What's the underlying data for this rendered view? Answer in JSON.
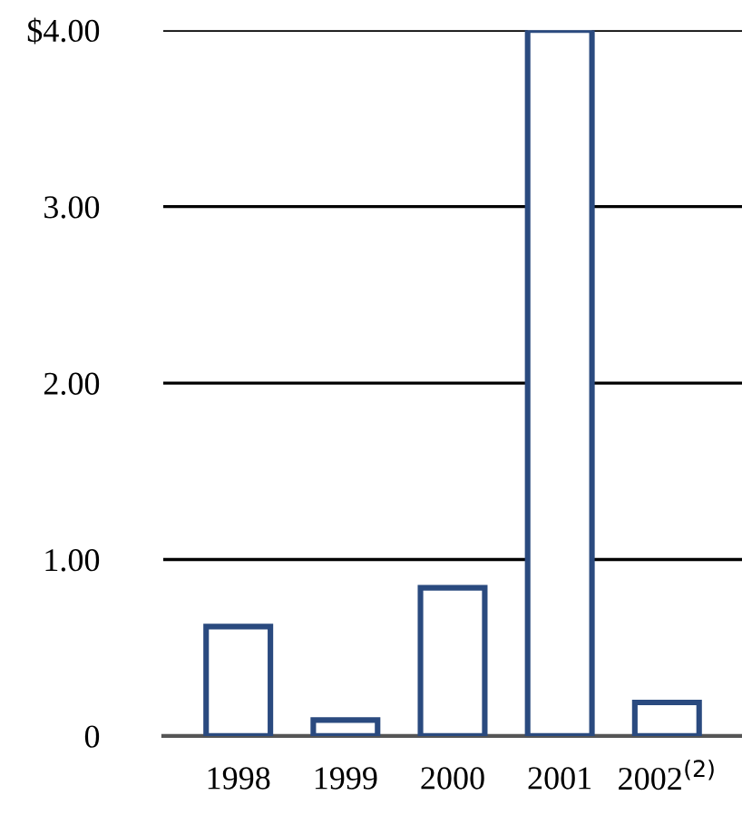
{
  "chart_data": {
    "type": "bar",
    "categories": [
      "1998",
      "1999",
      "2000",
      "2001",
      "2002$^{(2)}$"
    ],
    "values": [
      0.62,
      0.09,
      0.84,
      4.0,
      0.19
    ],
    "color": "#2a4a7f",
    "ylim": [
      0,
      4.0
    ],
    "yticks": [
      {
        "value": 0,
        "label": "0"
      },
      {
        "value": 1,
        "label": "1.00"
      },
      {
        "value": 2,
        "label": "2.00"
      },
      {
        "value": 3,
        "label": "3.00"
      },
      {
        "value": 4,
        "label": "$4.00"
      }
    ],
    "grid": "y"
  }
}
